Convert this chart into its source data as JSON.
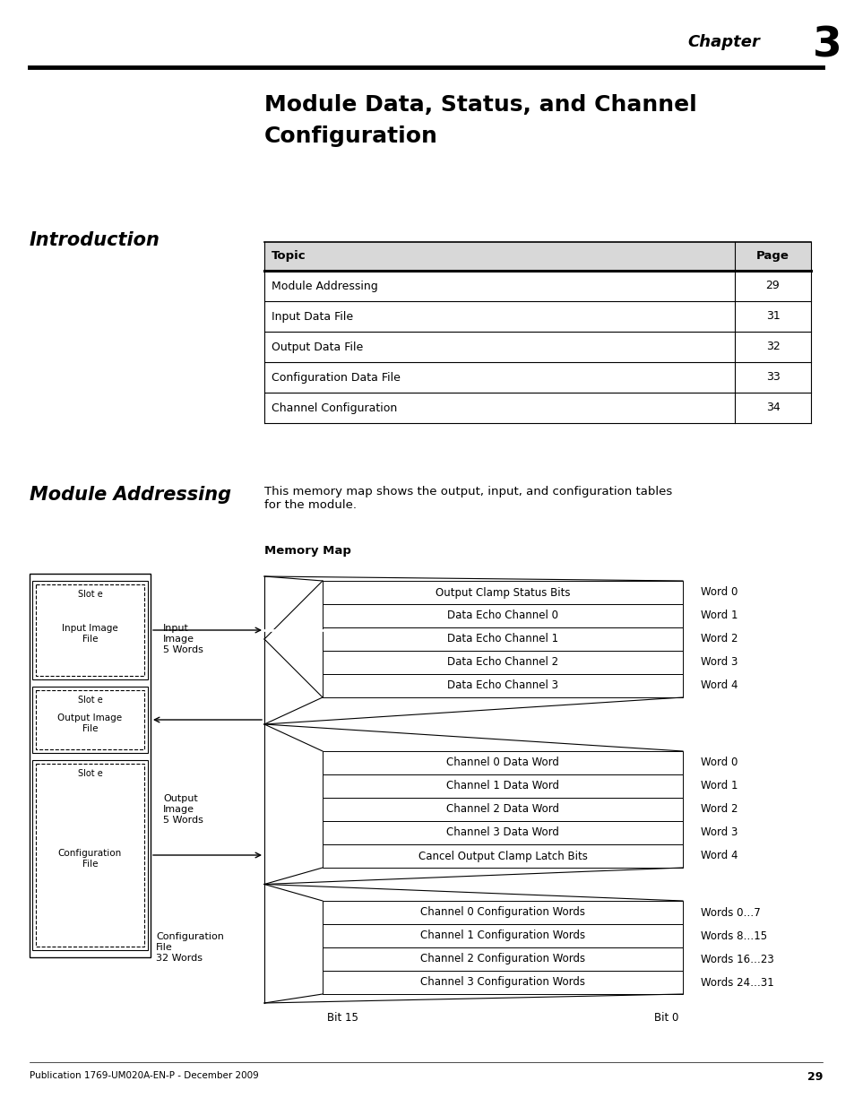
{
  "chapter_text": "Chapter",
  "chapter_num": "3",
  "title_line1": "Module Data, Status, and Channel",
  "title_line2": "Configuration",
  "section1_title": "Introduction",
  "table_headers": [
    "Topic",
    "Page"
  ],
  "table_rows": [
    [
      "Module Addressing",
      "29"
    ],
    [
      "Input Data File",
      "31"
    ],
    [
      "Output Data File",
      "32"
    ],
    [
      "Configuration Data File",
      "33"
    ],
    [
      "Channel Configuration",
      "34"
    ]
  ],
  "section2_title": "Module Addressing",
  "section2_desc": "This memory map shows the output, input, and configuration tables\nfor the module.",
  "memory_map_title": "Memory Map",
  "input_rows": [
    [
      "Output Clamp Status Bits",
      "Word 0"
    ],
    [
      "Data Echo Channel 0",
      "Word 1"
    ],
    [
      "Data Echo Channel 1",
      "Word 2"
    ],
    [
      "Data Echo Channel 2",
      "Word 3"
    ],
    [
      "Data Echo Channel 3",
      "Word 4"
    ]
  ],
  "output_rows": [
    [
      "Channel 0 Data Word",
      "Word 0"
    ],
    [
      "Channel 1 Data Word",
      "Word 1"
    ],
    [
      "Channel 2 Data Word",
      "Word 2"
    ],
    [
      "Channel 3 Data Word",
      "Word 3"
    ],
    [
      "Cancel Output Clamp Latch Bits",
      "Word 4"
    ]
  ],
  "config_rows": [
    [
      "Channel 0 Configuration Words",
      "Words 0…7"
    ],
    [
      "Channel 1 Configuration Words",
      "Words 8…15"
    ],
    [
      "Channel 2 Configuration Words",
      "Words 16…23"
    ],
    [
      "Channel 3 Configuration Words",
      "Words 24…31"
    ]
  ],
  "bit15_label": "Bit 15",
  "bit0_label": "Bit 0",
  "footer_text": "Publication 1769-UM020A-EN-P - December 2009",
  "footer_page": "29",
  "bg_color": "#ffffff"
}
